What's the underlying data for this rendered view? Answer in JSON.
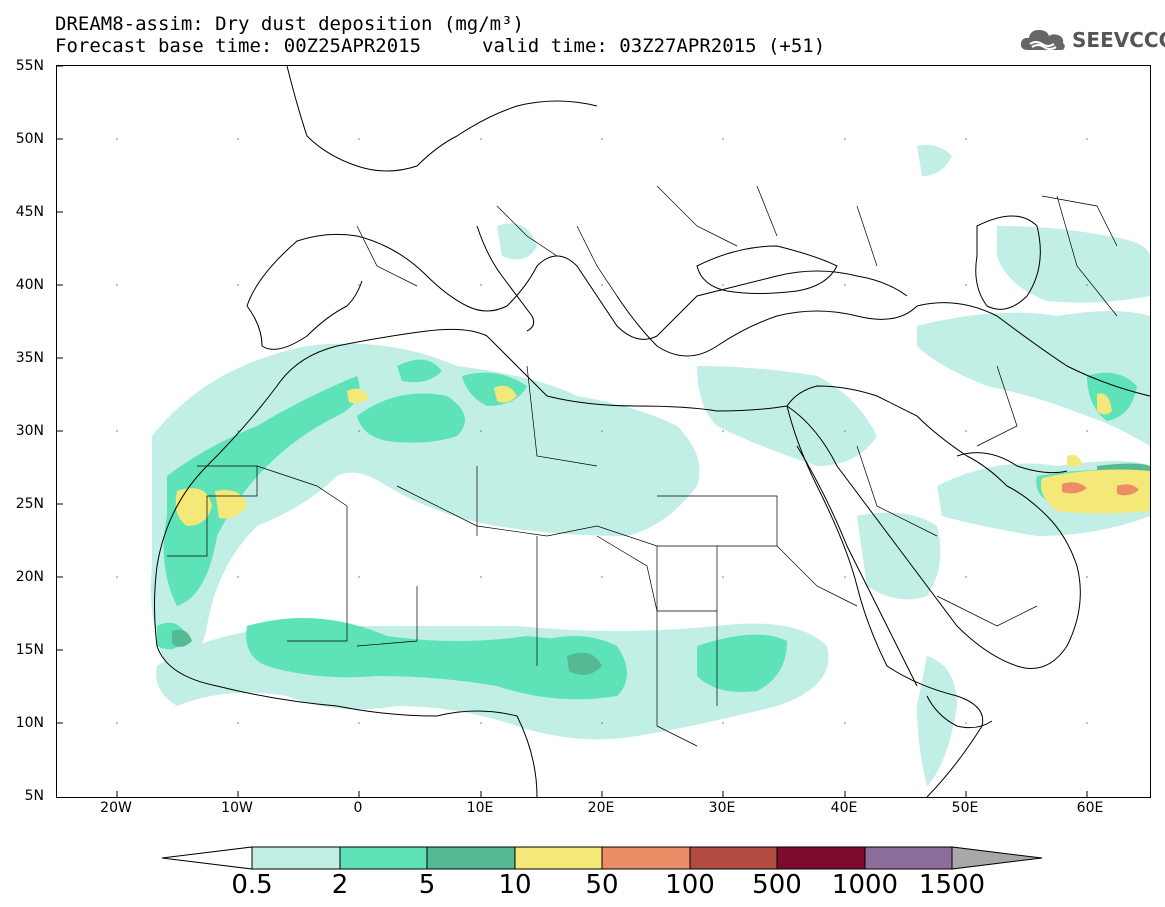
{
  "header": {
    "line1": "DREAM8-assim: Dry dust deposition (mg/m³)",
    "line2": "Forecast base time: 00Z25APR2015",
    "line3": "valid time: 03Z27APR2015 (+51)",
    "logo_text": "SEEVCCC"
  },
  "map": {
    "lon_range": [
      -25,
      65
    ],
    "lat_range": [
      5,
      55
    ],
    "lat_labels": [
      "55N",
      "50N",
      "45N",
      "40N",
      "35N",
      "30N",
      "25N",
      "20N",
      "15N",
      "10N",
      "5N"
    ],
    "lon_labels": [
      "20W",
      "10W",
      "0",
      "10E",
      "20E",
      "30E",
      "40E",
      "50E",
      "60E"
    ]
  },
  "colorbar": {
    "labels": [
      "0.5",
      "2",
      "5",
      "10",
      "50",
      "100",
      "500",
      "1000",
      "1500"
    ],
    "colors": [
      "#c1eee5",
      "#5ee3b9",
      "#55b993",
      "#f4e878",
      "#eb8d67",
      "#b24b40",
      "#7c0b2d",
      "#8d6d9a",
      "#a8a8a8"
    ]
  }
}
